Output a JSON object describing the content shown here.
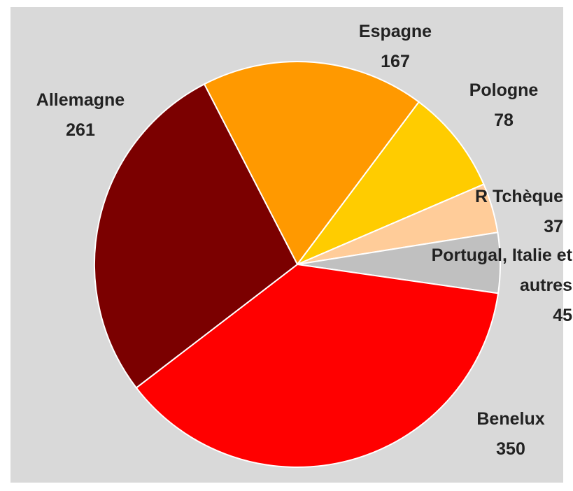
{
  "chart_data": {
    "type": "pie",
    "start_angle": -27.3,
    "categories": [
      "Espagne",
      "Pologne",
      "R Tchèque",
      "Portugal, Italie et autres",
      "Benelux",
      "Allemagne"
    ],
    "values": [
      167,
      78,
      37,
      45,
      350,
      261
    ],
    "colors": [
      "#ff9900",
      "#ffcc00",
      "#ffcc99",
      "#c0c0c0",
      "#ff0000",
      "#7b0000"
    ]
  }
}
